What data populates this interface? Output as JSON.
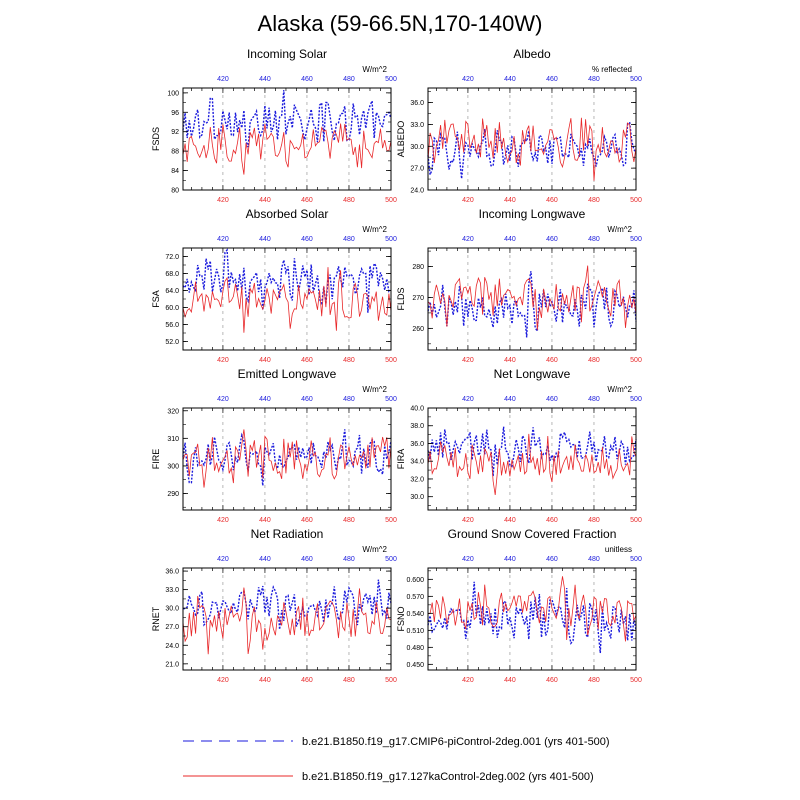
{
  "title": "Alaska (59-66.5N,170-140W)",
  "colors": {
    "series_a": "#1a1adc",
    "series_b": "#e8282a",
    "axis": "#000000",
    "grid": "#888888"
  },
  "legend": {
    "items": [
      {
        "label": "b.e21.B1850.f19_g17.CMIP6-piControl-2deg.001 (yrs 401-500)",
        "color": "#1a1adc",
        "style": "dashed"
      },
      {
        "label": "b.e21.B1850.f19_g17.127kaControl-2deg.002 (yrs 401-500)",
        "color": "#e8282a",
        "style": "solid"
      }
    ]
  },
  "chart_data": [
    {
      "type": "line",
      "title": "Incoming Solar",
      "ylabel": "FSDS",
      "units": "W/m^2",
      "xlim": [
        401,
        500
      ],
      "ylim": [
        80,
        101
      ],
      "yticks": [
        80,
        84,
        88,
        92,
        96,
        100
      ],
      "ytick_labels": [
        "80",
        "84",
        "88",
        "92",
        "96",
        "100"
      ],
      "xticks": [
        420,
        440,
        460,
        480,
        500
      ],
      "top_ticks": [
        "420",
        "440",
        "460",
        "480",
        "500"
      ],
      "bottom_ticks": [
        "420",
        "440",
        "460",
        "480",
        "500"
      ],
      "series_a": {
        "mean": 94,
        "amp": 3.2
      },
      "series_b": {
        "mean": 89.5,
        "amp": 3.0
      }
    },
    {
      "type": "line",
      "title": "Albedo",
      "ylabel": "ALBEDO",
      "units": "% reflected",
      "xlim": [
        401,
        500
      ],
      "ylim": [
        24,
        38
      ],
      "yticks": [
        24,
        27,
        30,
        33,
        36
      ],
      "ytick_labels": [
        "24.0",
        "27.0",
        "30.0",
        "33.0",
        "36.0"
      ],
      "xticks": [
        420,
        440,
        460,
        480,
        500
      ],
      "top_ticks": [
        "420",
        "440",
        "460",
        "480",
        "500"
      ],
      "bottom_ticks": [
        "420",
        "440",
        "460",
        "480",
        "500"
      ],
      "series_a": {
        "mean": 29.5,
        "amp": 2.0
      },
      "series_b": {
        "mean": 30.5,
        "amp": 2.4
      }
    },
    {
      "type": "line",
      "title": "Absorbed Solar",
      "ylabel": "FSA",
      "units": "W/m^2",
      "xlim": [
        401,
        500
      ],
      "ylim": [
        50,
        74
      ],
      "yticks": [
        52,
        56,
        60,
        64,
        68,
        72
      ],
      "ytick_labels": [
        "52.0",
        "56.0",
        "60.0",
        "64.0",
        "68.0",
        "72.0"
      ],
      "xticks": [
        420,
        440,
        460,
        480,
        500
      ],
      "top_ticks": [
        "420",
        "440",
        "460",
        "480",
        "500"
      ],
      "bottom_ticks": [
        "420",
        "440",
        "460",
        "480",
        "500"
      ],
      "series_a": {
        "mean": 66,
        "amp": 3.8
      },
      "series_b": {
        "mean": 61.5,
        "amp": 3.5
      }
    },
    {
      "type": "line",
      "title": "Incoming Longwave",
      "ylabel": "FLDS",
      "units": "W/m^2",
      "xlim": [
        401,
        500
      ],
      "ylim": [
        253,
        286
      ],
      "yticks": [
        260,
        270,
        280
      ],
      "ytick_labels": [
        "260",
        "270",
        "280"
      ],
      "xticks": [
        420,
        440,
        460,
        480,
        500
      ],
      "top_ticks": [
        "420",
        "440",
        "460",
        "480",
        "500"
      ],
      "bottom_ticks": [
        "420",
        "440",
        "460",
        "480",
        "500"
      ],
      "series_a": {
        "mean": 267,
        "amp": 5.5
      },
      "series_b": {
        "mean": 270,
        "amp": 5.0
      }
    },
    {
      "type": "line",
      "title": "Emitted Longwave",
      "ylabel": "FIRE",
      "units": "W/m^2",
      "xlim": [
        401,
        500
      ],
      "ylim": [
        284,
        321
      ],
      "yticks": [
        290,
        300,
        310,
        320
      ],
      "ytick_labels": [
        "290",
        "300",
        "310",
        "320"
      ],
      "xticks": [
        420,
        440,
        460,
        480,
        500
      ],
      "top_ticks": [
        "420",
        "440",
        "460",
        "480",
        "500"
      ],
      "bottom_ticks": [
        "420",
        "440",
        "460",
        "480",
        "500"
      ],
      "series_a": {
        "mean": 304,
        "amp": 5.0
      },
      "series_b": {
        "mean": 303,
        "amp": 5.5
      }
    },
    {
      "type": "line",
      "title": "Net Longwave",
      "ylabel": "FIRA",
      "units": "W/m^2",
      "xlim": [
        401,
        500
      ],
      "ylim": [
        28.5,
        40
      ],
      "yticks": [
        30,
        32,
        34,
        36,
        38,
        40
      ],
      "ytick_labels": [
        "30.0",
        "32.0",
        "34.0",
        "36.0",
        "38.0",
        "40.0"
      ],
      "xticks": [
        420,
        440,
        460,
        480,
        500
      ],
      "top_ticks": [
        "420",
        "440",
        "460",
        "480",
        "500"
      ],
      "bottom_ticks": [
        "420",
        "440",
        "460",
        "480",
        "500"
      ],
      "series_a": {
        "mean": 35.5,
        "amp": 1.7
      },
      "series_b": {
        "mean": 33.8,
        "amp": 1.6
      }
    },
    {
      "type": "line",
      "title": "Net Radiation",
      "ylabel": "RNET",
      "units": "W/m^2",
      "xlim": [
        401,
        500
      ],
      "ylim": [
        20,
        36.5
      ],
      "yticks": [
        21,
        24,
        27,
        30,
        33,
        36
      ],
      "ytick_labels": [
        "21.0",
        "24.0",
        "27.0",
        "30.0",
        "33.0",
        "36.0"
      ],
      "xticks": [
        420,
        440,
        460,
        480,
        500
      ],
      "top_ticks": [
        "420",
        "440",
        "460",
        "480",
        "500"
      ],
      "bottom_ticks": [
        "420",
        "440",
        "460",
        "480",
        "500"
      ],
      "series_a": {
        "mean": 30.5,
        "amp": 2.3
      },
      "series_b": {
        "mean": 28,
        "amp": 2.6
      }
    },
    {
      "type": "line",
      "title": "Ground Snow Covered Fraction",
      "ylabel": "FSNO",
      "units": "unitless",
      "xlim": [
        401,
        500
      ],
      "ylim": [
        0.44,
        0.62
      ],
      "yticks": [
        0.45,
        0.48,
        0.51,
        0.54,
        0.57,
        0.6
      ],
      "ytick_labels": [
        "0.450",
        "0.480",
        "0.510",
        "0.540",
        "0.570",
        "0.600"
      ],
      "xticks": [
        420,
        440,
        460,
        480,
        500
      ],
      "top_ticks": [
        "420",
        "440",
        "460",
        "480",
        "500"
      ],
      "bottom_ticks": [
        "420",
        "440",
        "460",
        "480",
        "500"
      ],
      "series_a": {
        "mean": 0.53,
        "amp": 0.03
      },
      "series_b": {
        "mean": 0.545,
        "amp": 0.025
      }
    }
  ]
}
